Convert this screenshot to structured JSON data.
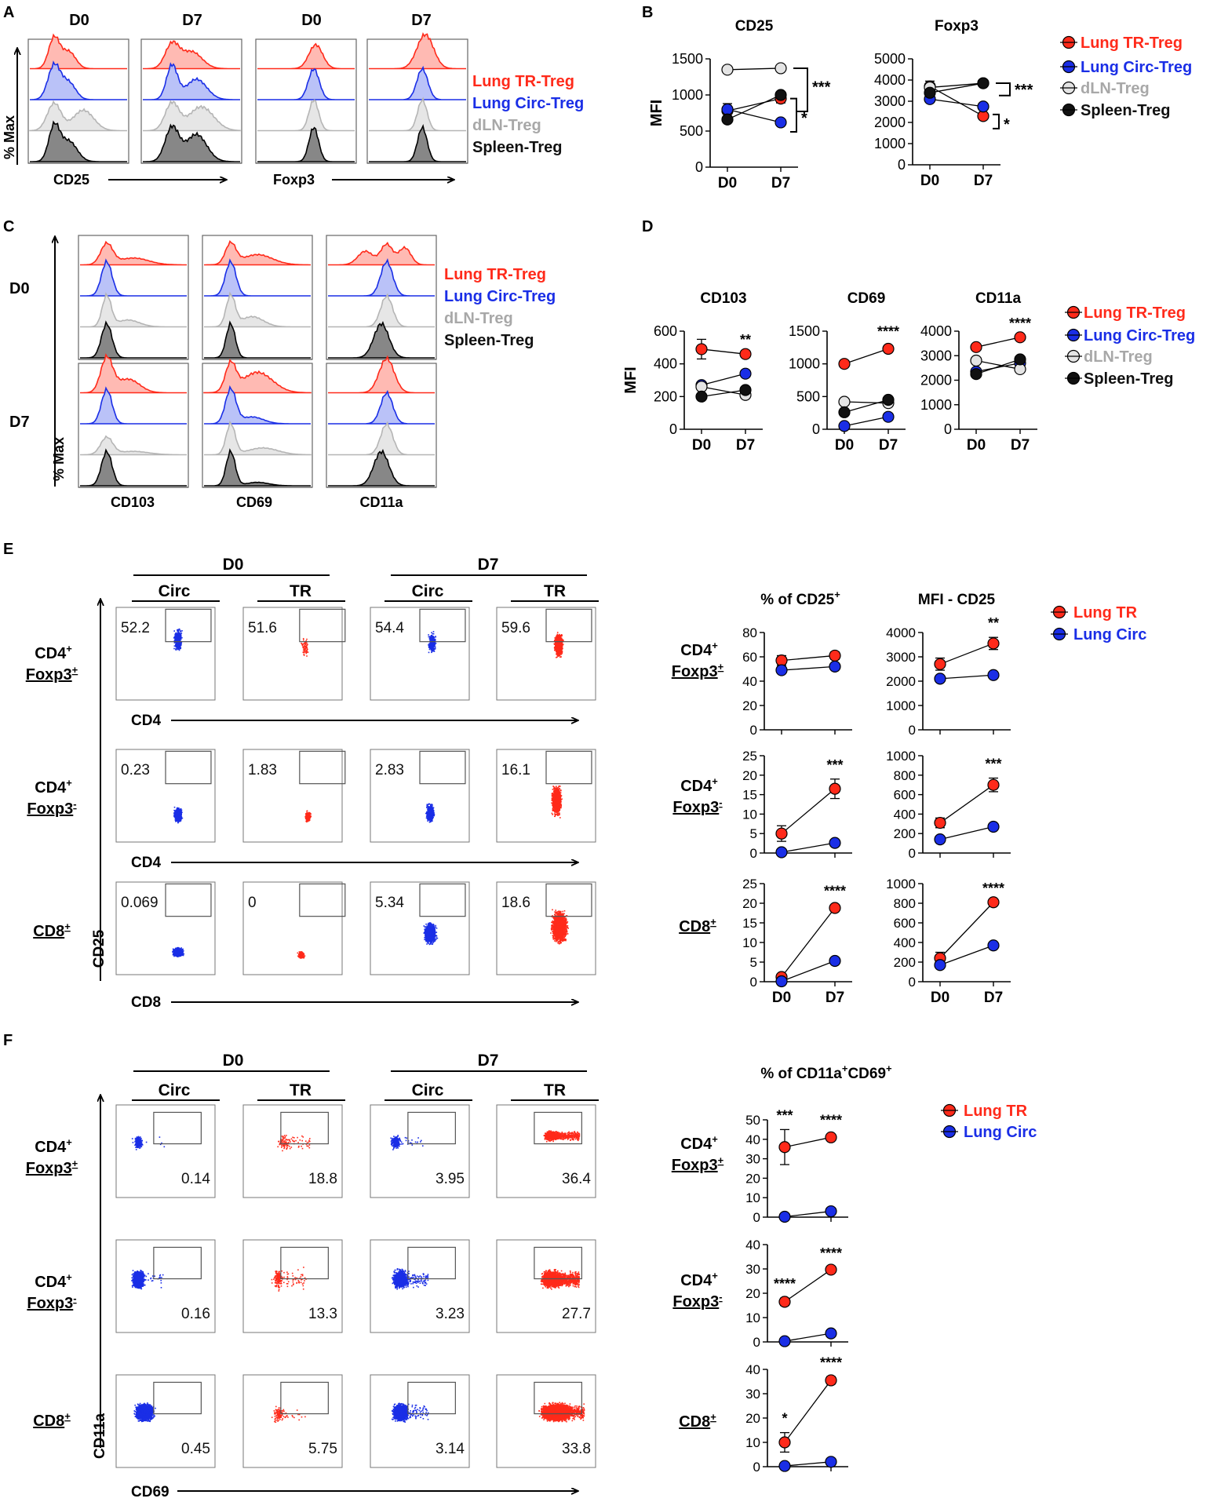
{
  "colors": {
    "tr": "#ff2a1a",
    "circ": "#1a2ee6",
    "dln": "#b0b0b0",
    "spleen": "#111111",
    "text": "#000000"
  },
  "strings": {
    "times": [
      "D0",
      "D7"
    ],
    "pct_max": "% Max",
    "mfi": "MFI",
    "circ": "Circ",
    "tr": "TR",
    "cd4": "CD4",
    "cd8": "CD8",
    "cd25": "CD25",
    "cd69": "CD69",
    "cd11a": "CD11a",
    "row_labels": [
      {
        "line1": "CD4",
        "sup1": "+",
        "line2": "Foxp3",
        "sup2": "+"
      },
      {
        "line1": "CD4",
        "sup1": "+",
        "line2": "Foxp3",
        "sup2": "-"
      },
      {
        "line1": "CD8",
        "sup1": "+",
        "line2": "",
        "sup2": ""
      }
    ],
    "titleE_pct_base": "% of CD25",
    "titleE_pct_sup": "+",
    "titleE_mfi": "MFI - CD25",
    "titleF_base": "% of CD11a",
    "titleF_sup1": "+",
    "titleF_mid": "CD69",
    "titleF_sup2": "+"
  },
  "panels": {
    "A": {
      "letter": "A",
      "col_headers": [
        "D0",
        "D7",
        "D0",
        "D7"
      ],
      "xlabels": [
        "CD25",
        "Foxp3"
      ],
      "ylabel": "% Max",
      "legend": [
        "Lung TR-Treg",
        "Lung Circ-Treg",
        "dLN-Treg",
        "Spleen-Treg"
      ]
    },
    "B": {
      "letter": "B",
      "legend": [
        "Lung TR-Treg",
        "Lung Circ-Treg",
        "dLN-Treg",
        "Spleen-Treg"
      ]
    },
    "C": {
      "letter": "C",
      "row_labels": [
        "D0",
        "D7"
      ],
      "xlabels": [
        "CD103",
        "CD69",
        "CD11a"
      ],
      "legend": [
        "Lung TR-Treg",
        "Lung Circ-Treg",
        "dLN-Treg",
        "Spleen-Treg"
      ]
    },
    "D": {
      "letter": "D",
      "legend": [
        "Lung TR-Treg",
        "Lung Circ-Treg",
        "dLN-Treg",
        "Spleen-Treg"
      ]
    },
    "E": {
      "letter": "E",
      "legend": [
        "Lung TR",
        "Lung Circ"
      ],
      "gates": [
        [
          "52.2",
          "51.6",
          "54.4",
          "59.6"
        ],
        [
          "0.23",
          "1.83",
          "2.83",
          "16.1"
        ],
        [
          "0.069",
          "0",
          "5.34",
          "18.6"
        ]
      ]
    },
    "F": {
      "letter": "F",
      "legend": [
        "Lung TR",
        "Lung Circ"
      ],
      "gates": [
        [
          "0.14",
          "18.8",
          "3.95",
          "36.4"
        ],
        [
          "0.16",
          "13.3",
          "3.23",
          "27.7"
        ],
        [
          "0.45",
          "5.75",
          "3.14",
          "33.8"
        ]
      ]
    }
  },
  "chart_data": [
    {
      "panel": "B",
      "id": "B1",
      "type": "line",
      "title": "CD25",
      "ylabel": "MFI",
      "ylim": [
        0,
        1500
      ],
      "yticks": [
        0,
        500,
        1000,
        1500
      ],
      "categories": [
        "D0",
        "D7"
      ],
      "series": [
        {
          "name": "Lung TR-Treg",
          "values": [
            780,
            950
          ],
          "err": [
            100,
            60
          ]
        },
        {
          "name": "Lung Circ-Treg",
          "values": [
            800,
            620
          ],
          "err": [
            0,
            0
          ]
        },
        {
          "name": "dLN-Treg",
          "values": [
            1350,
            1370
          ],
          "err": [
            0,
            40
          ]
        },
        {
          "name": "Spleen-Treg",
          "values": [
            660,
            1000
          ],
          "err": [
            0,
            0
          ]
        }
      ],
      "annotations": [
        {
          "text": "***",
          "bracket": true
        },
        {
          "text": "*",
          "bracket": true
        }
      ]
    },
    {
      "panel": "B",
      "id": "B2",
      "type": "line",
      "title": "Foxp3",
      "ylabel": "",
      "ylim": [
        0,
        5000
      ],
      "yticks": [
        0,
        1000,
        2000,
        3000,
        4000,
        5000
      ],
      "categories": [
        "D0",
        "D7"
      ],
      "series": [
        {
          "name": "Lung TR-Treg",
          "values": [
            3700,
            2300
          ],
          "err": [
            250,
            0
          ]
        },
        {
          "name": "Lung Circ-Treg",
          "values": [
            3100,
            2750
          ],
          "err": [
            0,
            0
          ]
        },
        {
          "name": "dLN-Treg",
          "values": [
            3650,
            3850
          ],
          "err": [
            0,
            0
          ]
        },
        {
          "name": "Spleen-Treg",
          "values": [
            3400,
            3850
          ],
          "err": [
            0,
            0
          ]
        }
      ],
      "annotations": [
        {
          "text": "***",
          "bracket": true
        },
        {
          "text": "*",
          "bracket": true
        }
      ]
    },
    {
      "panel": "D",
      "id": "D1",
      "type": "line",
      "title": "CD103",
      "ylabel": "MFI",
      "ylim": [
        0,
        600
      ],
      "yticks": [
        0,
        200,
        400,
        600
      ],
      "categories": [
        "D0",
        "D7"
      ],
      "series": [
        {
          "name": "Lung TR-Treg",
          "values": [
            490,
            460
          ],
          "err": [
            60,
            0
          ]
        },
        {
          "name": "Lung Circ-Treg",
          "values": [
            270,
            340
          ],
          "err": [
            0,
            0
          ]
        },
        {
          "name": "dLN-Treg",
          "values": [
            260,
            210
          ],
          "err": [
            0,
            0
          ]
        },
        {
          "name": "Spleen-Treg",
          "values": [
            200,
            240
          ],
          "err": [
            0,
            0
          ]
        }
      ],
      "annotations": [
        {
          "text": "**",
          "at": 1
        }
      ]
    },
    {
      "panel": "D",
      "id": "D2",
      "type": "line",
      "title": "CD69",
      "ylabel": "",
      "ylim": [
        0,
        1500
      ],
      "yticks": [
        0,
        500,
        1000,
        1500
      ],
      "categories": [
        "D0",
        "D7"
      ],
      "series": [
        {
          "name": "Lung TR-Treg",
          "values": [
            1000,
            1230
          ],
          "err": [
            0,
            50
          ]
        },
        {
          "name": "Lung Circ-Treg",
          "values": [
            50,
            190
          ],
          "err": [
            0,
            0
          ]
        },
        {
          "name": "dLN-Treg",
          "values": [
            420,
            400
          ],
          "err": [
            0,
            0
          ]
        },
        {
          "name": "Spleen-Treg",
          "values": [
            260,
            450
          ],
          "err": [
            0,
            0
          ]
        }
      ],
      "annotations": [
        {
          "text": "****",
          "at": 1
        }
      ]
    },
    {
      "panel": "D",
      "id": "D3",
      "type": "line",
      "title": "CD11a",
      "ylabel": "",
      "ylim": [
        0,
        4000
      ],
      "yticks": [
        0,
        1000,
        2000,
        3000,
        4000
      ],
      "categories": [
        "D0",
        "D7"
      ],
      "series": [
        {
          "name": "Lung TR-Treg",
          "values": [
            3350,
            3750
          ],
          "err": [
            0,
            0
          ]
        },
        {
          "name": "Lung Circ-Treg",
          "values": [
            2350,
            2700
          ],
          "err": [
            0,
            0
          ]
        },
        {
          "name": "dLN-Treg",
          "values": [
            2800,
            2450
          ],
          "err": [
            0,
            0
          ]
        },
        {
          "name": "Spleen-Treg",
          "values": [
            2250,
            2850
          ],
          "err": [
            0,
            0
          ]
        }
      ],
      "annotations": [
        {
          "text": "****",
          "at": 1
        }
      ]
    },
    {
      "panel": "E",
      "id": "E1",
      "type": "line",
      "title": "% of CD25+",
      "ylabel": "",
      "ylim": [
        0,
        80
      ],
      "yticks": [
        0,
        20,
        40,
        60,
        80
      ],
      "categories": [
        "D0",
        "D7"
      ],
      "series": [
        {
          "name": "Lung TR",
          "values": [
            57,
            61
          ],
          "err": [
            4,
            3
          ]
        },
        {
          "name": "Lung Circ",
          "values": [
            49,
            52
          ],
          "err": [
            0,
            0
          ]
        }
      ],
      "annotations": []
    },
    {
      "panel": "E",
      "id": "E2",
      "type": "line",
      "title": "MFI - CD25",
      "ylabel": "",
      "ylim": [
        0,
        4000
      ],
      "yticks": [
        0,
        1000,
        2000,
        3000,
        4000
      ],
      "categories": [
        "D0",
        "D7"
      ],
      "series": [
        {
          "name": "Lung TR",
          "values": [
            2700,
            3550
          ],
          "err": [
            250,
            250
          ]
        },
        {
          "name": "Lung Circ",
          "values": [
            2100,
            2250
          ],
          "err": [
            0,
            0
          ]
        }
      ],
      "annotations": [
        {
          "text": "**",
          "at": 1
        }
      ]
    },
    {
      "panel": "E",
      "id": "E3",
      "type": "line",
      "title": "",
      "ylabel": "",
      "ylim": [
        0,
        25
      ],
      "yticks": [
        0,
        5,
        10,
        15,
        20,
        25
      ],
      "categories": [
        "D0",
        "D7"
      ],
      "series": [
        {
          "name": "Lung TR",
          "values": [
            5,
            16.5
          ],
          "err": [
            2,
            2.5
          ]
        },
        {
          "name": "Lung Circ",
          "values": [
            0.2,
            2.6
          ],
          "err": [
            0,
            0
          ]
        }
      ],
      "annotations": [
        {
          "text": "***",
          "at": 1
        }
      ]
    },
    {
      "panel": "E",
      "id": "E4",
      "type": "line",
      "title": "",
      "ylabel": "",
      "ylim": [
        0,
        1000
      ],
      "yticks": [
        0,
        200,
        400,
        600,
        800,
        1000
      ],
      "categories": [
        "D0",
        "D7"
      ],
      "series": [
        {
          "name": "Lung TR",
          "values": [
            310,
            700
          ],
          "err": [
            50,
            70
          ]
        },
        {
          "name": "Lung Circ",
          "values": [
            140,
            270
          ],
          "err": [
            0,
            0
          ]
        }
      ],
      "annotations": [
        {
          "text": "***",
          "at": 1
        }
      ]
    },
    {
      "panel": "E",
      "id": "E5",
      "type": "line",
      "title": "",
      "ylabel": "",
      "ylim": [
        0,
        25
      ],
      "yticks": [
        0,
        5,
        10,
        15,
        20,
        25
      ],
      "categories": [
        "D0",
        "D7"
      ],
      "series": [
        {
          "name": "Lung TR",
          "values": [
            1.2,
            18.8
          ],
          "err": [
            0,
            0.7
          ]
        },
        {
          "name": "Lung Circ",
          "values": [
            0.1,
            5.3
          ],
          "err": [
            0,
            0
          ]
        }
      ],
      "annotations": [
        {
          "text": "****",
          "at": 1
        }
      ]
    },
    {
      "panel": "E",
      "id": "E6",
      "type": "line",
      "title": "",
      "ylabel": "",
      "ylim": [
        0,
        1000
      ],
      "yticks": [
        0,
        200,
        400,
        600,
        800,
        1000
      ],
      "categories": [
        "D0",
        "D7"
      ],
      "series": [
        {
          "name": "Lung TR",
          "values": [
            240,
            810
          ],
          "err": [
            60,
            0
          ]
        },
        {
          "name": "Lung Circ",
          "values": [
            170,
            370
          ],
          "err": [
            0,
            0
          ]
        }
      ],
      "annotations": [
        {
          "text": "****",
          "at": 1
        }
      ]
    },
    {
      "panel": "F",
      "id": "F1",
      "type": "line",
      "title": "% of CD11a+CD69+",
      "ylabel": "",
      "ylim": [
        0,
        50
      ],
      "yticks": [
        0,
        10,
        20,
        30,
        40,
        50
      ],
      "categories": [
        "D0",
        "D7"
      ],
      "series": [
        {
          "name": "Lung TR",
          "values": [
            36,
            41
          ],
          "err": [
            9,
            1.5
          ]
        },
        {
          "name": "Lung Circ",
          "values": [
            0.2,
            3
          ],
          "err": [
            0,
            0
          ]
        }
      ],
      "annotations": [
        {
          "text": "***",
          "at": 0
        },
        {
          "text": "****",
          "at": 1
        }
      ]
    },
    {
      "panel": "F",
      "id": "F2",
      "type": "line",
      "title": "",
      "ylabel": "",
      "ylim": [
        0,
        40
      ],
      "yticks": [
        0,
        10,
        20,
        30,
        40
      ],
      "categories": [
        "D0",
        "D7"
      ],
      "series": [
        {
          "name": "Lung TR",
          "values": [
            16.5,
            29.7
          ],
          "err": [
            1.5,
            1
          ]
        },
        {
          "name": "Lung Circ",
          "values": [
            0.3,
            3.5
          ],
          "err": [
            0,
            0
          ]
        }
      ],
      "annotations": [
        {
          "text": "****",
          "at": 0
        },
        {
          "text": "****",
          "at": 1
        }
      ]
    },
    {
      "panel": "F",
      "id": "F3",
      "type": "line",
      "title": "",
      "ylabel": "",
      "ylim": [
        0,
        40
      ],
      "yticks": [
        0,
        10,
        20,
        30,
        40
      ],
      "categories": [
        "D0",
        "D7"
      ],
      "series": [
        {
          "name": "Lung TR",
          "values": [
            10,
            35.5
          ],
          "err": [
            4,
            1.5
          ]
        },
        {
          "name": "Lung Circ",
          "values": [
            0.3,
            2
          ],
          "err": [
            0,
            0
          ]
        }
      ],
      "annotations": [
        {
          "text": "*",
          "at": 0
        },
        {
          "text": "****",
          "at": 1
        }
      ]
    }
  ]
}
